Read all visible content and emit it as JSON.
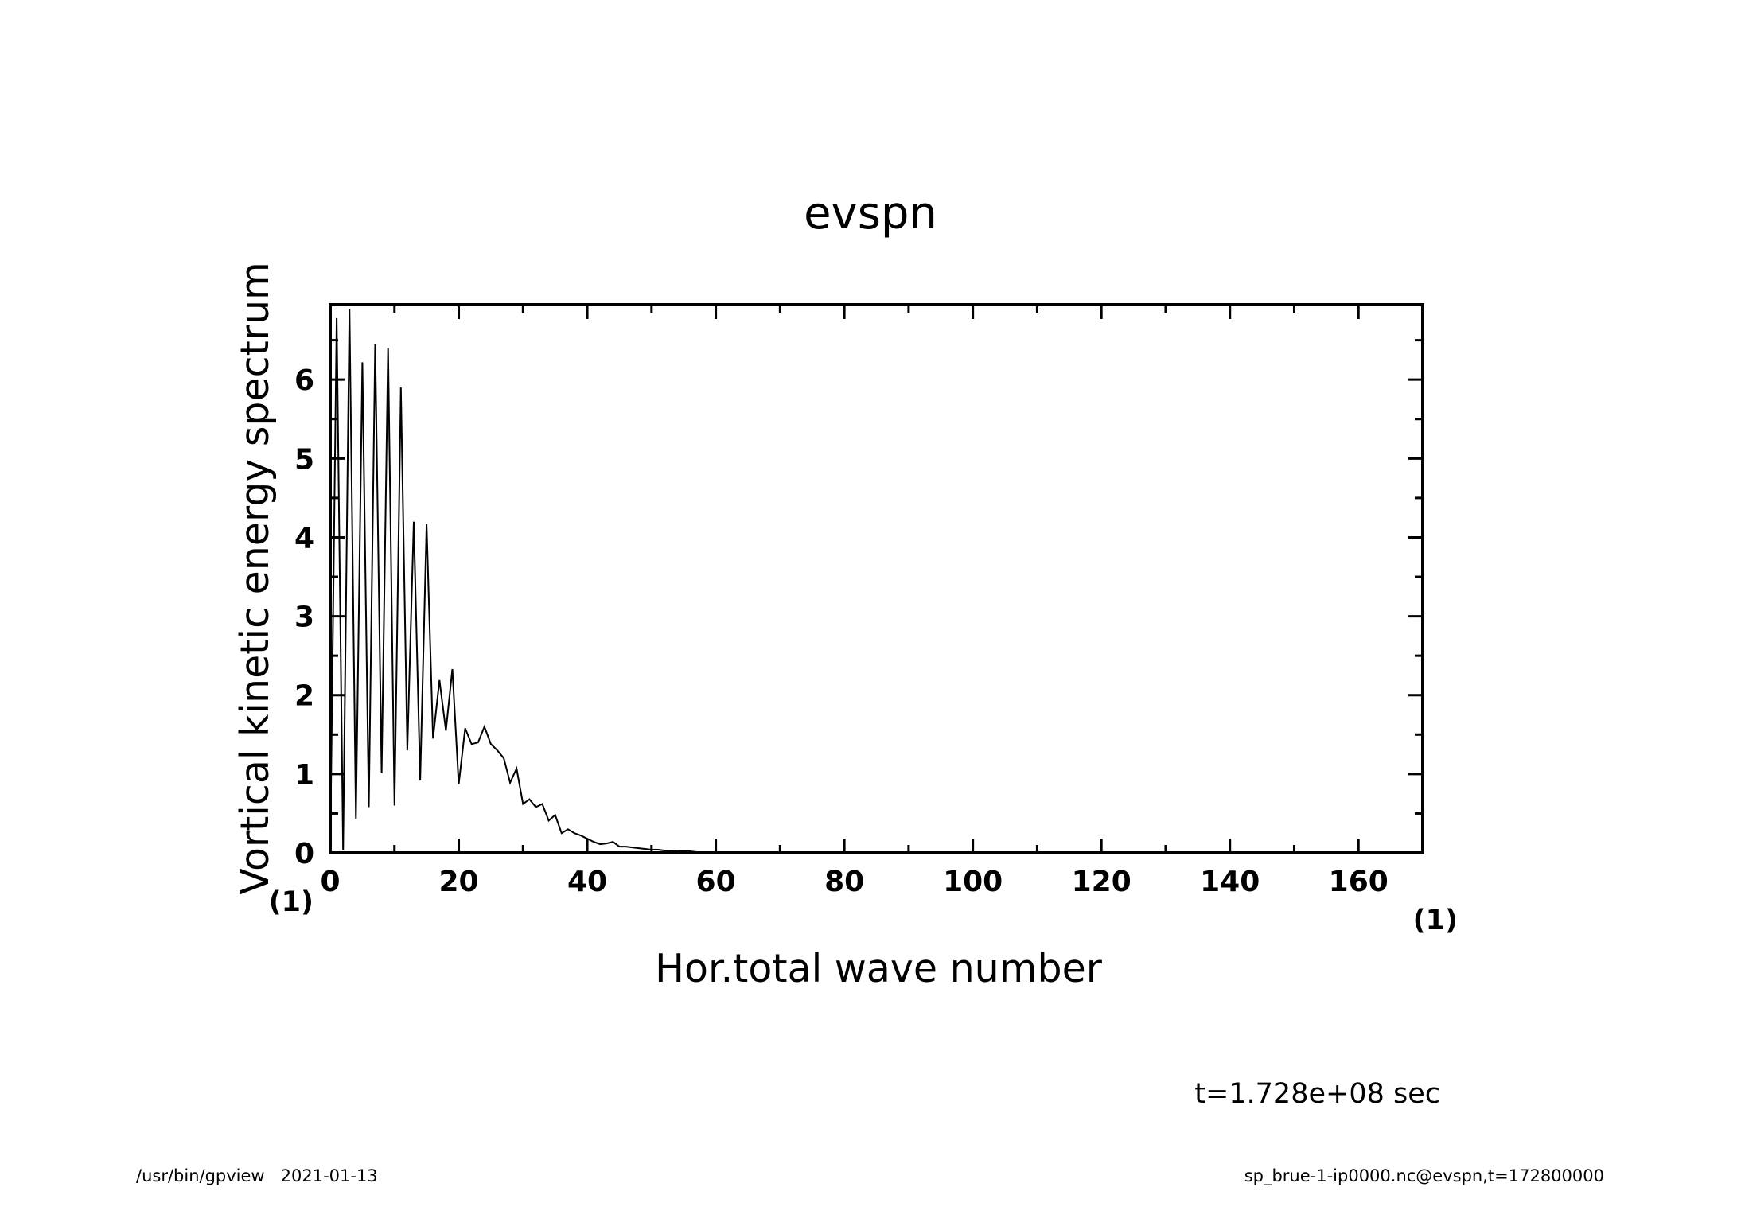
{
  "chart_data": {
    "type": "line",
    "title": "evspn",
    "xlabel": "Hor.total wave number",
    "ylabel": "Vortical kinetic energy spectrum",
    "x_unit": "(1)",
    "y_unit": "(1)",
    "xlim": [
      0,
      170
    ],
    "ylim": [
      0,
      6.95
    ],
    "x_ticks": [
      "0",
      "20",
      "40",
      "60",
      "80",
      "100",
      "120",
      "140",
      "160"
    ],
    "y_ticks": [
      "0",
      "1",
      "2",
      "3",
      "4",
      "5",
      "6"
    ],
    "grid": false,
    "series": [
      {
        "x": [
          0,
          1,
          2,
          3,
          4,
          5,
          6,
          7,
          8,
          9,
          10,
          11,
          12,
          13,
          14,
          15,
          16,
          17,
          18,
          19,
          20,
          21,
          22,
          23,
          24,
          25,
          26,
          27,
          28,
          29,
          30,
          31,
          32,
          33,
          34,
          35,
          36,
          37,
          38,
          39,
          40,
          41,
          42,
          43,
          44,
          45,
          46,
          47,
          48,
          49,
          50,
          51,
          52,
          53,
          54,
          55,
          56,
          57,
          58,
          59,
          60,
          62,
          64,
          66,
          68,
          70,
          80,
          90,
          100,
          110,
          120,
          130,
          140,
          150,
          160,
          170
        ],
        "y": [
          0,
          6.78,
          0.03,
          6.9,
          0.43,
          6.22,
          0.58,
          6.45,
          1.01,
          6.4,
          0.6,
          5.9,
          1.3,
          4.2,
          0.92,
          4.17,
          1.45,
          2.19,
          1.55,
          2.33,
          0.87,
          1.58,
          1.38,
          1.4,
          1.6,
          1.38,
          1.3,
          1.2,
          0.89,
          1.07,
          0.62,
          0.68,
          0.58,
          0.62,
          0.41,
          0.48,
          0.25,
          0.3,
          0.25,
          0.22,
          0.18,
          0.14,
          0.11,
          0.12,
          0.14,
          0.08,
          0.08,
          0.07,
          0.06,
          0.05,
          0.04,
          0.04,
          0.03,
          0.03,
          0.02,
          0.02,
          0.02,
          0.01,
          0.01,
          0.01,
          0.01,
          0.005,
          0.003,
          0.002,
          0.001,
          0,
          0,
          0,
          0,
          0,
          0,
          0,
          0,
          0,
          0,
          0
        ]
      }
    ]
  },
  "annotation": {
    "time": "t=1.728e+08 sec"
  },
  "footer": {
    "left": "/usr/bin/gpview   2021-01-13",
    "right": "sp_brue-1-ip0000.nc@evspn,t=172800000"
  }
}
